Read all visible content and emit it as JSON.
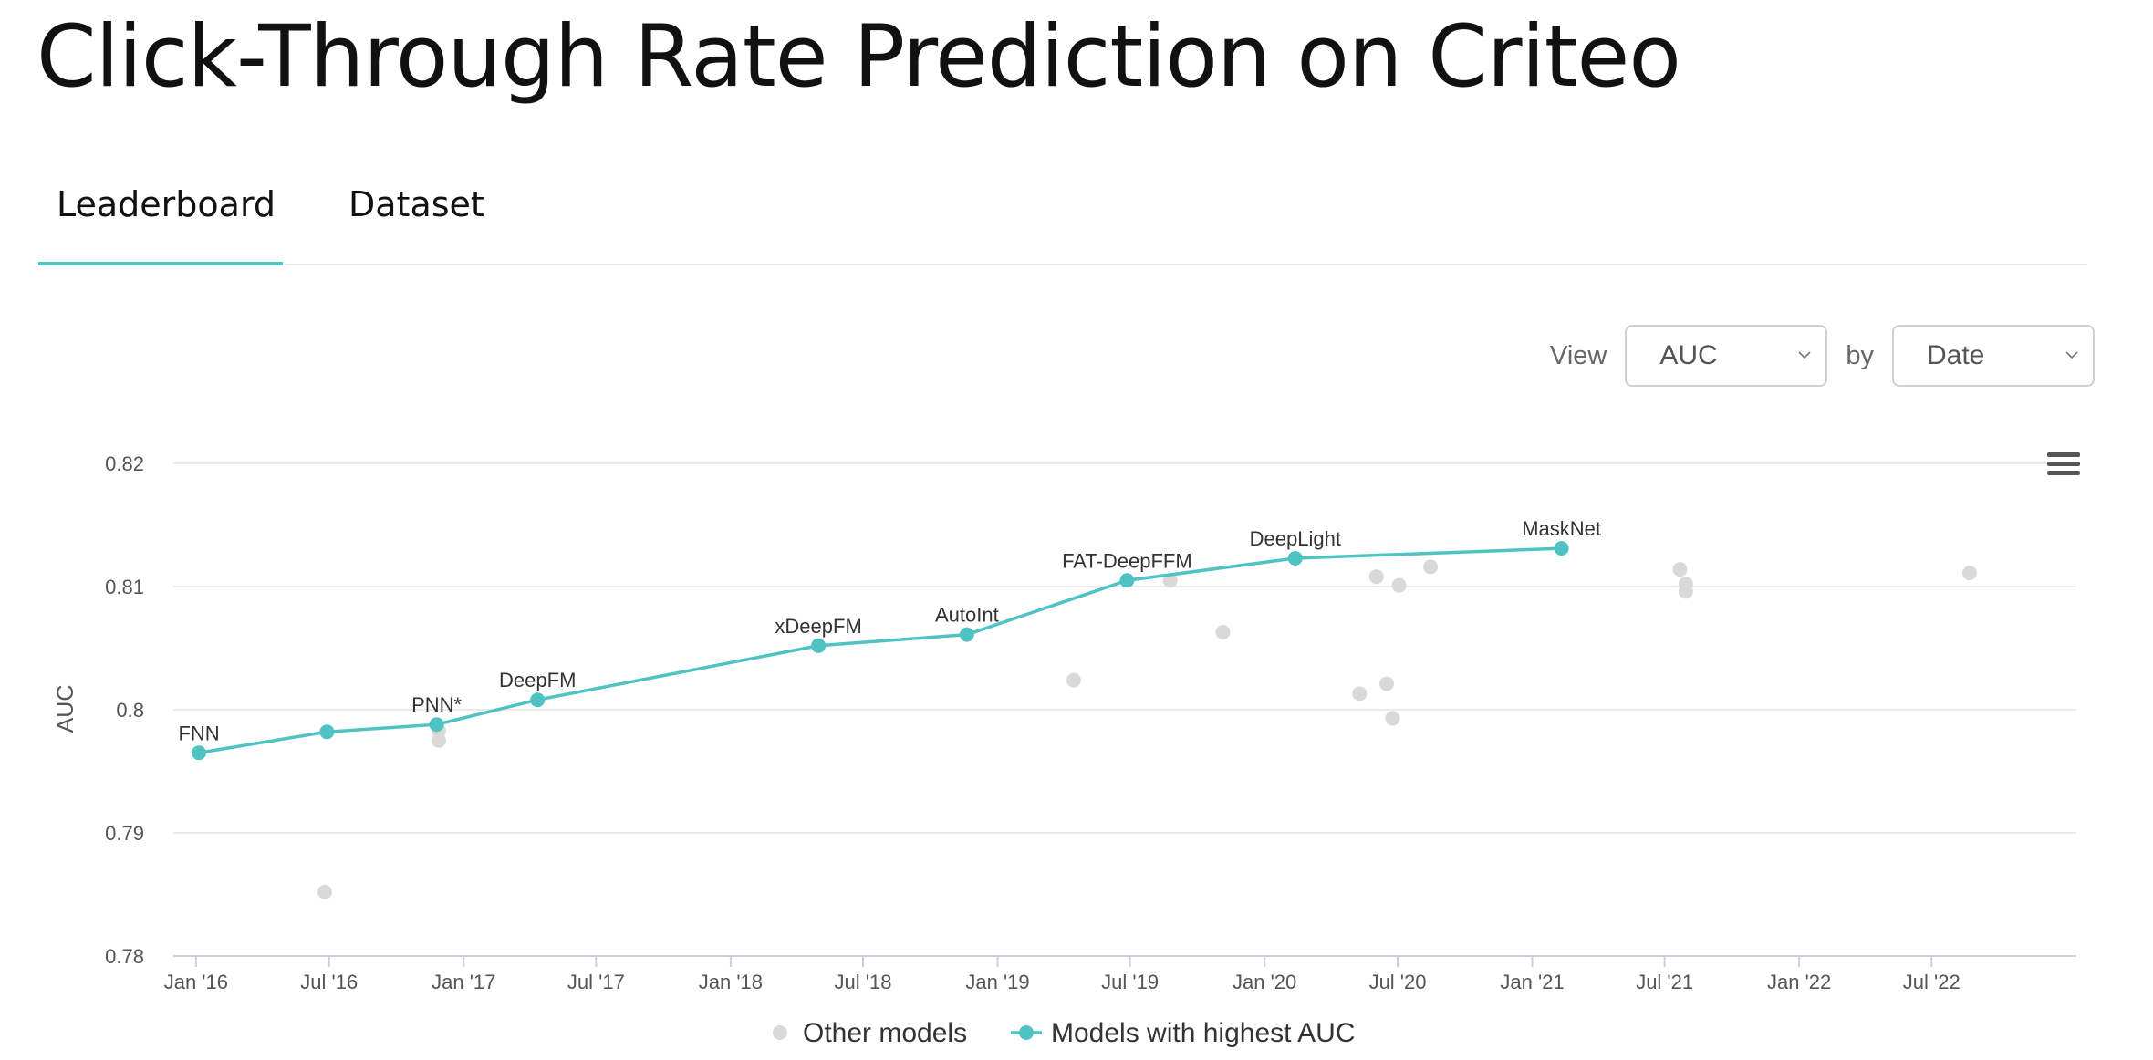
{
  "page": {
    "title": "Click-Through Rate Prediction on Criteo"
  },
  "tabs": [
    {
      "label": "Leaderboard",
      "active": true
    },
    {
      "label": "Dataset",
      "active": false
    }
  ],
  "controls": {
    "view_label": "View",
    "view_value": "AUC",
    "by_label": "by",
    "by_value": "Date"
  },
  "icons": {
    "menu": "hamburger-menu-icon",
    "dropdown": "chevron-down-icon"
  },
  "colors": {
    "accent": "#4fc3c3",
    "other": "#d9d9d9"
  },
  "chart_data": {
    "type": "scatter",
    "ylabel": "AUC",
    "xlabel": "",
    "ylim": [
      0.78,
      0.82
    ],
    "yticks": [
      0.78,
      0.79,
      0.8,
      0.81,
      0.82
    ],
    "xlim": [
      "2015-12-01",
      "2023-01-15"
    ],
    "xticks": [
      {
        "date": "2016-01-01",
        "label": "Jan '16"
      },
      {
        "date": "2016-07-01",
        "label": "Jul '16"
      },
      {
        "date": "2017-01-01",
        "label": "Jan '17"
      },
      {
        "date": "2017-07-01",
        "label": "Jul '17"
      },
      {
        "date": "2018-01-01",
        "label": "Jan '18"
      },
      {
        "date": "2018-07-01",
        "label": "Jul '18"
      },
      {
        "date": "2019-01-01",
        "label": "Jan '19"
      },
      {
        "date": "2019-07-01",
        "label": "Jul '19"
      },
      {
        "date": "2020-01-01",
        "label": "Jan '20"
      },
      {
        "date": "2020-07-01",
        "label": "Jul '20"
      },
      {
        "date": "2021-01-01",
        "label": "Jan '21"
      },
      {
        "date": "2021-07-01",
        "label": "Jul '21"
      },
      {
        "date": "2022-01-01",
        "label": "Jan '22"
      },
      {
        "date": "2022-07-01",
        "label": "Jul '22"
      }
    ],
    "grid": true,
    "legend": "bottom-center",
    "series": [
      {
        "name": "Other models",
        "color": "#d9d9d9",
        "points": [
          {
            "x": "2016-06-25",
            "y": 0.7852
          },
          {
            "x": "2016-11-28",
            "y": 0.7975
          },
          {
            "x": "2016-11-28",
            "y": 0.7983
          },
          {
            "x": "2019-04-15",
            "y": 0.8024
          },
          {
            "x": "2019-08-25",
            "y": 0.8105
          },
          {
            "x": "2019-11-05",
            "y": 0.8063
          },
          {
            "x": "2020-05-10",
            "y": 0.8013
          },
          {
            "x": "2020-06-02",
            "y": 0.8108
          },
          {
            "x": "2020-06-16",
            "y": 0.8021
          },
          {
            "x": "2020-06-24",
            "y": 0.7993
          },
          {
            "x": "2020-07-03",
            "y": 0.8101
          },
          {
            "x": "2020-08-15",
            "y": 0.8116
          },
          {
            "x": "2021-07-22",
            "y": 0.8114
          },
          {
            "x": "2021-07-30",
            "y": 0.8102
          },
          {
            "x": "2021-07-30",
            "y": 0.8096
          },
          {
            "x": "2022-08-22",
            "y": 0.8111
          }
        ]
      },
      {
        "name": "Models with highest AUC",
        "color": "#4fc3c3",
        "points": [
          {
            "x": "2016-01-05",
            "y": 0.7965,
            "label": "FNN"
          },
          {
            "x": "2016-06-28",
            "y": 0.7982,
            "label": ""
          },
          {
            "x": "2016-11-25",
            "y": 0.7988,
            "label": "PNN*"
          },
          {
            "x": "2017-04-12",
            "y": 0.8008,
            "label": "DeepFM"
          },
          {
            "x": "2018-05-01",
            "y": 0.8052,
            "label": "xDeepFM"
          },
          {
            "x": "2018-11-20",
            "y": 0.8061,
            "label": "AutoInt"
          },
          {
            "x": "2019-06-27",
            "y": 0.8105,
            "label": "FAT-DeepFFM"
          },
          {
            "x": "2020-02-12",
            "y": 0.8123,
            "label": "DeepLight"
          },
          {
            "x": "2021-02-10",
            "y": 0.8131,
            "label": "MaskNet"
          }
        ]
      }
    ]
  }
}
